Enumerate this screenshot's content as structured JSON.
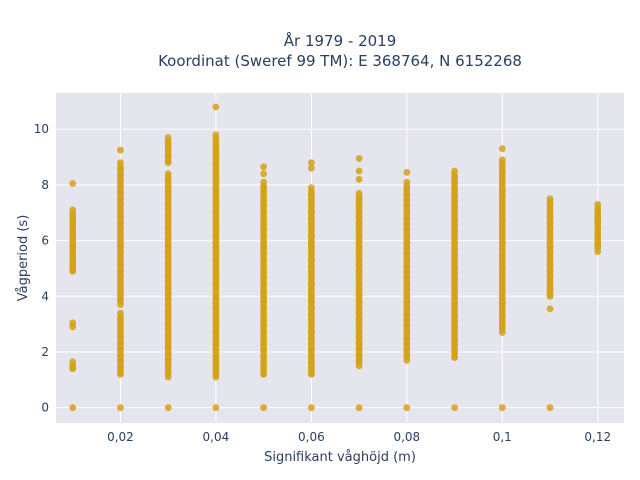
{
  "chart_data": {
    "type": "scatter",
    "title_lines": [
      "År 1979 - 2019",
      "Koordinat (Sweref 99 TM): E 368764, N 6152268"
    ],
    "xlabel": "Signifikant våghöjd (m)",
    "ylabel": "Vågperiod (s)",
    "xlim": [
      0.0065,
      0.1255
    ],
    "ylim": [
      -0.55,
      11.3
    ],
    "x_ticks": [
      0.02,
      0.04,
      0.06,
      0.08,
      0.1,
      0.12
    ],
    "x_tick_labels": [
      "0,02",
      "0,04",
      "0,06",
      "0,08",
      "0,1",
      "0,12"
    ],
    "y_ticks": [
      0,
      2,
      4,
      6,
      8,
      10
    ],
    "y_tick_labels": [
      "0",
      "2",
      "4",
      "6",
      "8",
      "10"
    ],
    "grid": true,
    "marker_color": "#d4a216",
    "plot_bg": "#e5e5ee",
    "series": [
      {
        "columns": [
          {
            "x": 0.01,
            "zero": true,
            "segments": [
              [
                1.4,
                1.65
              ],
              [
                2.9,
                3.05
              ],
              [
                4.9,
                7.1
              ]
            ],
            "outliers": [
              8.05
            ]
          },
          {
            "x": 0.02,
            "zero": true,
            "segments": [
              [
                1.2,
                3.4
              ],
              [
                3.7,
                8.8
              ]
            ],
            "outliers": [
              9.25
            ]
          },
          {
            "x": 0.03,
            "zero": true,
            "segments": [
              [
                1.1,
                8.4
              ],
              [
                8.8,
                9.7
              ]
            ],
            "outliers": []
          },
          {
            "x": 0.04,
            "zero": true,
            "segments": [
              [
                1.1,
                9.8
              ]
            ],
            "outliers": [
              10.8
            ]
          },
          {
            "x": 0.05,
            "zero": true,
            "segments": [
              [
                1.2,
                8.1
              ]
            ],
            "outliers": [
              8.4,
              8.65
            ]
          },
          {
            "x": 0.06,
            "zero": true,
            "segments": [
              [
                1.2,
                7.9
              ]
            ],
            "outliers": [
              8.6,
              8.8
            ]
          },
          {
            "x": 0.07,
            "zero": true,
            "segments": [
              [
                1.5,
                7.7
              ]
            ],
            "outliers": [
              8.2,
              8.5,
              8.95
            ]
          },
          {
            "x": 0.08,
            "zero": true,
            "segments": [
              [
                1.7,
                8.1
              ]
            ],
            "outliers": [
              8.45
            ]
          },
          {
            "x": 0.09,
            "zero": true,
            "segments": [
              [
                1.8,
                8.5
              ]
            ],
            "outliers": []
          },
          {
            "x": 0.1,
            "zero": true,
            "segments": [
              [
                2.7,
                8.9
              ]
            ],
            "outliers": [
              9.3
            ]
          },
          {
            "x": 0.11,
            "zero": true,
            "segments": [
              [
                4.0,
                7.5
              ]
            ],
            "outliers": [
              3.55
            ]
          },
          {
            "x": 0.12,
            "zero": false,
            "segments": [
              [
                5.6,
                7.3
              ]
            ],
            "outliers": []
          }
        ]
      }
    ]
  }
}
